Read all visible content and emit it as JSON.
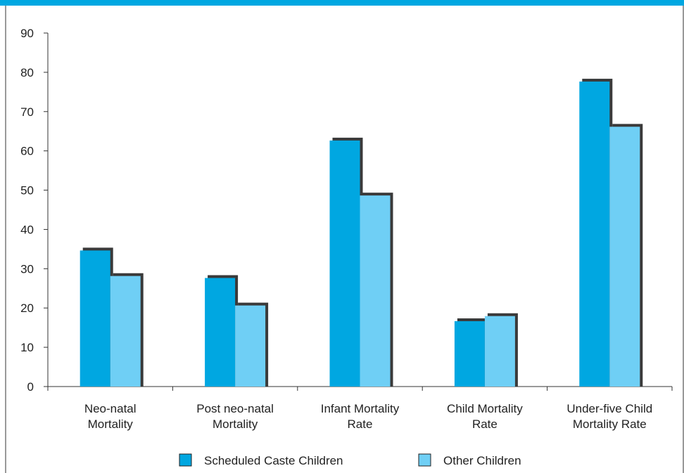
{
  "chart_data": {
    "type": "bar",
    "title": "",
    "xlabel": "",
    "ylabel": "",
    "ylim": [
      0,
      90
    ],
    "yticks": [
      0,
      10,
      20,
      30,
      40,
      50,
      60,
      70,
      80,
      90
    ],
    "grid": false,
    "legend_position": "bottom",
    "categories": [
      [
        "Neo-natal",
        "Mortality"
      ],
      [
        "Post neo-natal",
        "Mortality"
      ],
      [
        "Infant Mortality",
        "Rate"
      ],
      [
        "Child Mortality",
        "Rate"
      ],
      [
        "Under-five Child",
        "Mortality Rate"
      ]
    ],
    "series": [
      {
        "name": "Scheduled Caste Children",
        "color": "#00a7e1",
        "values": [
          35,
          28,
          63,
          17,
          78
        ]
      },
      {
        "name": "Other Children",
        "color": "#6fcff5",
        "values": [
          28.5,
          21,
          49,
          18.3,
          66.5
        ]
      }
    ]
  }
}
